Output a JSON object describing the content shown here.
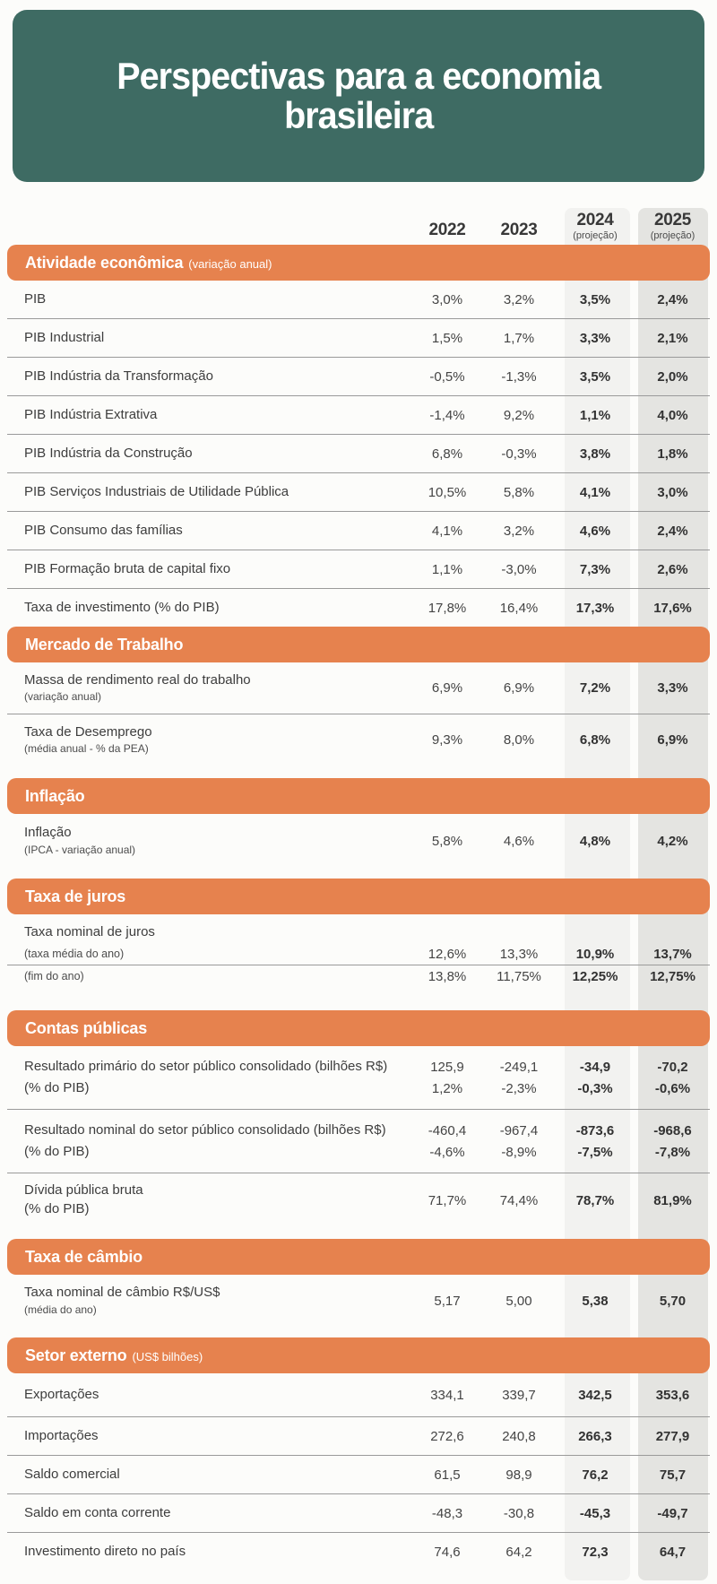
{
  "title": {
    "line1": "Perspectivas para a economia",
    "line2": "brasileira"
  },
  "colors": {
    "teal_header": "#3E6B63",
    "orange_section": "#E6824E",
    "stripe_2024": "#F2F2F0",
    "stripe_2025": "#E4E4E1",
    "text": "#3D3D3D"
  },
  "chart_data": {
    "type": "table",
    "title": "Perspectivas para a economia brasileira",
    "columns": [
      {
        "year": "2022",
        "note": ""
      },
      {
        "year": "2023",
        "note": ""
      },
      {
        "year": "2024",
        "note": "(projeção)"
      },
      {
        "year": "2025",
        "note": "(projeção)"
      }
    ],
    "sections": [
      {
        "title": "Atividade econômica",
        "subtitle": "(variação anual)",
        "rows": [
          {
            "label": "PIB",
            "v": [
              "3,0%",
              "3,2%",
              "3,5%",
              "2,4%"
            ]
          },
          {
            "label": "PIB Industrial",
            "v": [
              "1,5%",
              "1,7%",
              "3,3%",
              "2,1%"
            ]
          },
          {
            "label": "PIB Indústria da Transformação",
            "v": [
              "-0,5%",
              "-1,3%",
              "3,5%",
              "2,0%"
            ]
          },
          {
            "label": "PIB Indústria Extrativa",
            "v": [
              "-1,4%",
              "9,2%",
              "1,1%",
              "4,0%"
            ]
          },
          {
            "label": "PIB Indústria da Construção",
            "v": [
              "6,8%",
              "-0,3%",
              "3,8%",
              "1,8%"
            ]
          },
          {
            "label": "PIB Serviços Industriais de Utilidade Pública",
            "v": [
              "10,5%",
              "5,8%",
              "4,1%",
              "3,0%"
            ]
          },
          {
            "label": "PIB Consumo das famílias",
            "v": [
              "4,1%",
              "3,2%",
              "4,6%",
              "2,4%"
            ]
          },
          {
            "label": "PIB Formação bruta de capital fixo",
            "v": [
              "1,1%",
              "-3,0%",
              "7,3%",
              "2,6%"
            ]
          },
          {
            "label": "Taxa de investimento (% do PIB)",
            "v": [
              "17,8%",
              "16,4%",
              "17,3%",
              "17,6%"
            ]
          }
        ]
      },
      {
        "title": "Mercado de Trabalho",
        "subtitle": "",
        "rows": [
          {
            "label": "Massa de rendimento real do trabalho",
            "sublabel": "(variação anual)",
            "v": [
              "6,9%",
              "6,9%",
              "7,2%",
              "3,3%"
            ]
          },
          {
            "label": "Taxa de Desemprego",
            "sublabel": "(média anual - % da PEA)",
            "v": [
              "9,3%",
              "8,0%",
              "6,8%",
              "6,9%"
            ]
          }
        ]
      },
      {
        "title": "Inflação",
        "subtitle": "",
        "rows": [
          {
            "label": "Inflação",
            "sublabel": "(IPCA - variação anual)",
            "v": [
              "5,8%",
              "4,6%",
              "4,8%",
              "4,2%"
            ]
          }
        ]
      },
      {
        "title": "Taxa de juros",
        "subtitle": "",
        "group_label": "Taxa nominal de juros",
        "rows": [
          {
            "label": "(taxa média do ano)",
            "v": [
              "12,6%",
              "13,3%",
              "10,9%",
              "13,7%"
            ]
          },
          {
            "label": "(fim do ano)",
            "v": [
              "13,8%",
              "11,75%",
              "12,25%",
              "12,75%"
            ]
          }
        ]
      },
      {
        "title": "Contas públicas",
        "subtitle": "",
        "rows": [
          {
            "label": "Resultado primário do setor público consolidado  (bilhões R$)",
            "v": [
              "125,9",
              "-249,1",
              "-34,9",
              "-70,2"
            ]
          },
          {
            "label": "(% do PIB)",
            "v": [
              "1,2%",
              "-2,3%",
              "-0,3%",
              "-0,6%"
            ]
          },
          {
            "label": "Resultado nominal do setor público consolidado (bilhões R$)",
            "v": [
              "-460,4",
              "-967,4",
              "-873,6",
              "-968,6"
            ]
          },
          {
            "label": "(% do PIB)",
            "v": [
              "-4,6%",
              "-8,9%",
              "-7,5%",
              "-7,8%"
            ]
          },
          {
            "label": "Dívida pública bruta",
            "sublabel": "(% do PIB)",
            "v": [
              "71,7%",
              "74,4%",
              "78,7%",
              "81,9%"
            ]
          }
        ]
      },
      {
        "title": "Taxa de câmbio",
        "subtitle": "",
        "rows": [
          {
            "label": "Taxa nominal de câmbio R$/US$",
            "sublabel": "(média do ano)",
            "v": [
              "5,17",
              "5,00",
              "5,38",
              "5,70"
            ]
          }
        ]
      },
      {
        "title": "Setor externo",
        "subtitle": "(US$ bilhões)",
        "rows": [
          {
            "label": "Exportações",
            "v": [
              "334,1",
              "339,7",
              "342,5",
              "353,6"
            ]
          },
          {
            "label": "Importações",
            "v": [
              "272,6",
              "240,8",
              "266,3",
              "277,9"
            ]
          },
          {
            "label": "Saldo comercial",
            "v": [
              "61,5",
              "98,9",
              "76,2",
              "75,7"
            ]
          },
          {
            "label": "Saldo em conta corrente",
            "v": [
              "-48,3",
              "-30,8",
              "-45,3",
              "-49,7"
            ]
          },
          {
            "label": "Investimento direto no país",
            "v": [
              "74,6",
              "64,2",
              "72,3",
              "64,7"
            ]
          }
        ]
      }
    ]
  }
}
